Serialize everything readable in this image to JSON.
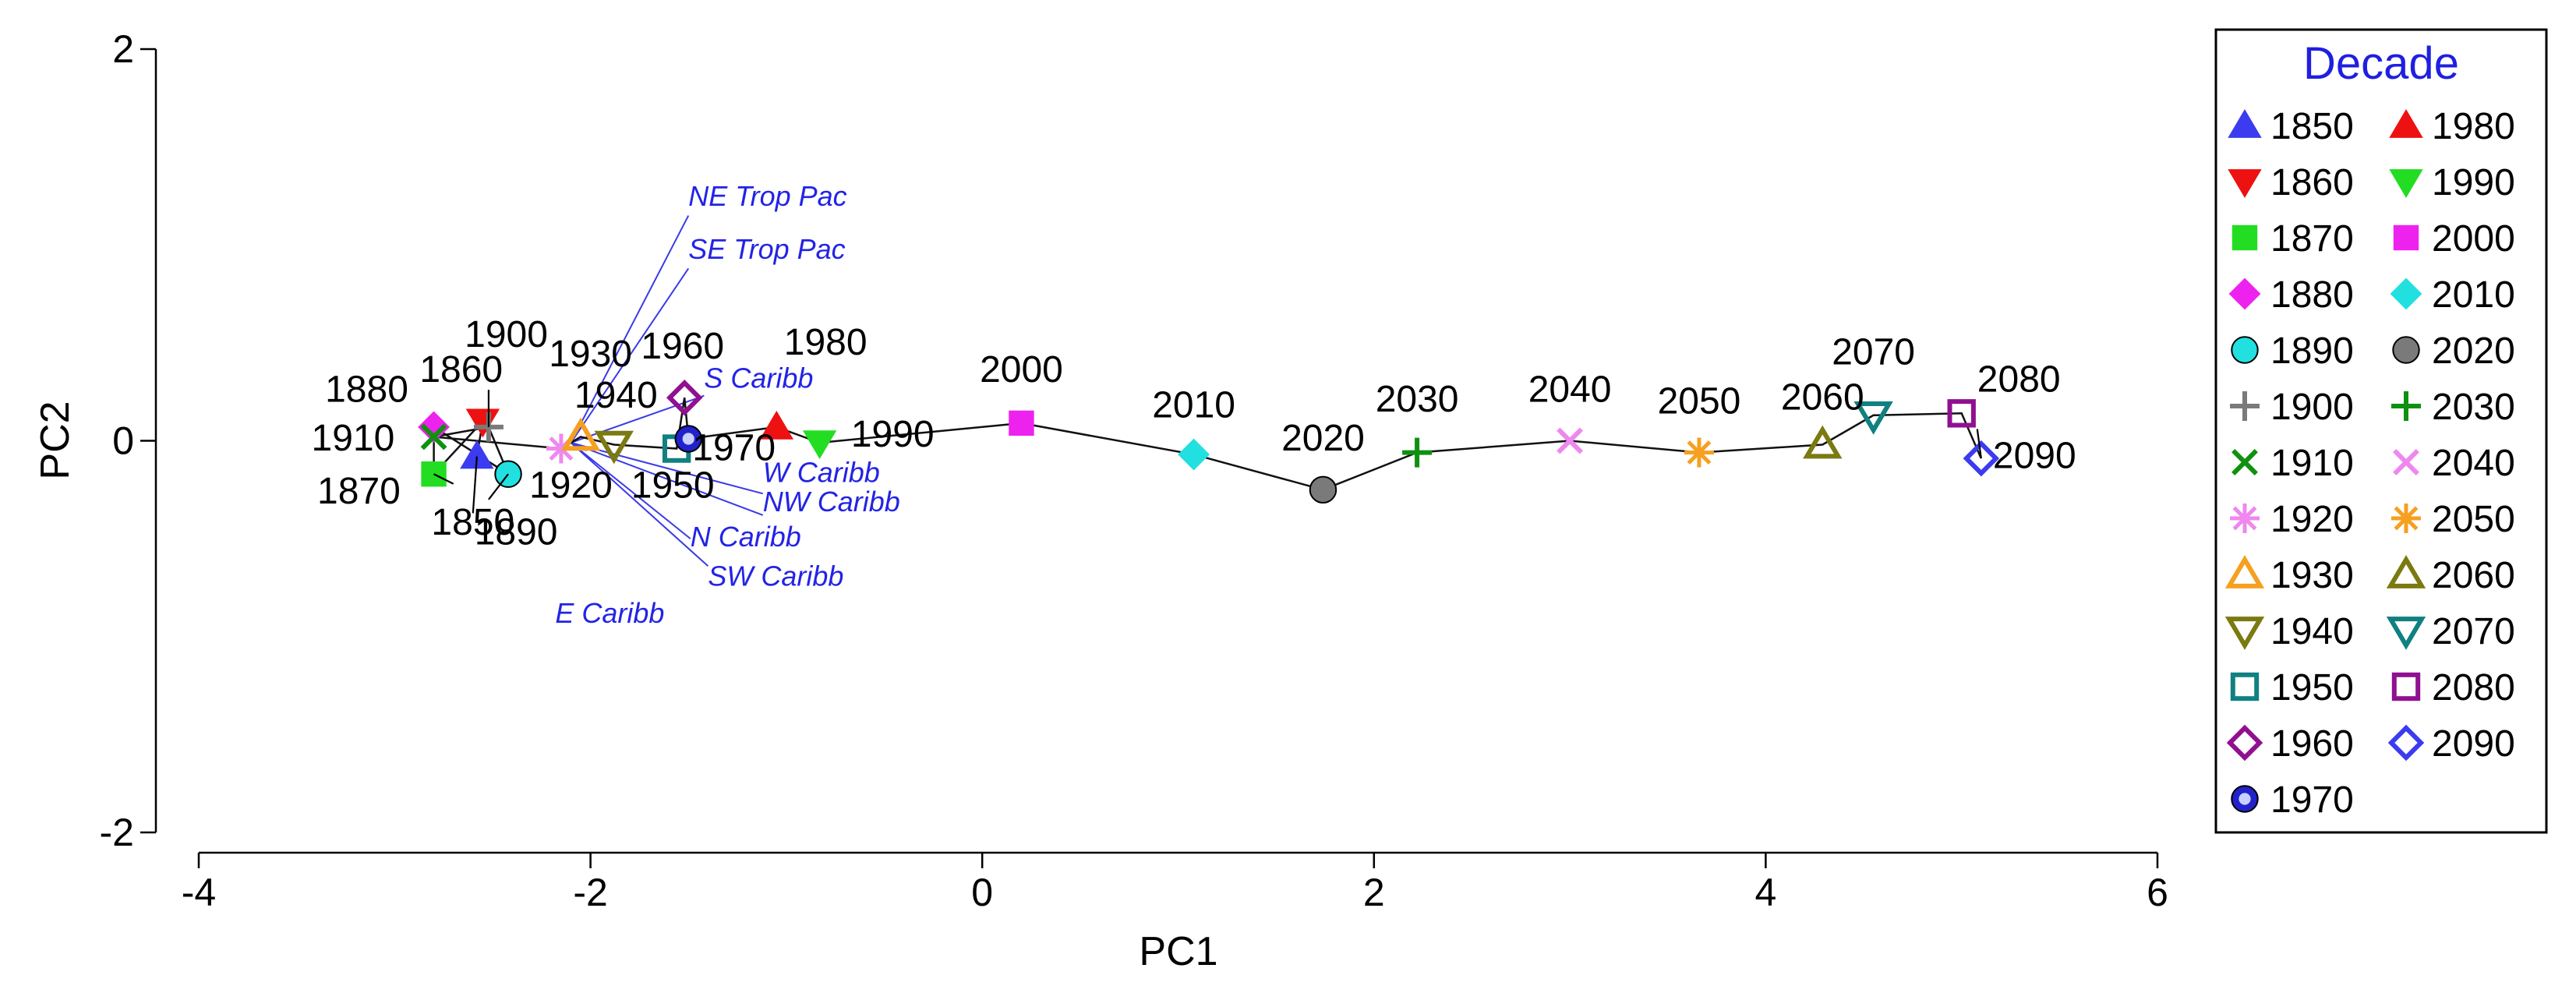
{
  "chart_data": {
    "type": "scatter",
    "title": "",
    "xlabel": "PC1",
    "ylabel": "PC2",
    "xlim": [
      -4,
      6
    ],
    "ylim": [
      -2,
      2
    ],
    "xticks": [
      -4,
      -2,
      0,
      2,
      4,
      6
    ],
    "yticks": [
      -2,
      0,
      2
    ],
    "grid": false,
    "legend": {
      "title": "Decade",
      "placement": "right"
    },
    "points": [
      {
        "decade": "1850",
        "x": -2.58,
        "y": -0.08,
        "marker": "triangle-up",
        "color": "#3b3bf0",
        "filled": true
      },
      {
        "decade": "1860",
        "x": -2.55,
        "y": 0.1,
        "marker": "triangle-down",
        "color": "#ee1111",
        "filled": true
      },
      {
        "decade": "1870",
        "x": -2.8,
        "y": -0.17,
        "marker": "square",
        "color": "#22dd22",
        "filled": true
      },
      {
        "decade": "1880",
        "x": -2.8,
        "y": 0.07,
        "marker": "diamond",
        "color": "#ee22ee",
        "filled": true
      },
      {
        "decade": "1890",
        "x": -2.42,
        "y": -0.17,
        "marker": "circle",
        "color": "#22e0e0",
        "filled": true
      },
      {
        "decade": "1900",
        "x": -2.52,
        "y": 0.07,
        "marker": "plus",
        "color": "#7a7a7a",
        "filled": false
      },
      {
        "decade": "1910",
        "x": -2.8,
        "y": 0.02,
        "marker": "cross",
        "color": "#109010",
        "filled": false
      },
      {
        "decade": "1920",
        "x": -2.15,
        "y": -0.04,
        "marker": "asterisk",
        "color": "#ee88ee",
        "filled": false
      },
      {
        "decade": "1930",
        "x": -2.05,
        "y": 0.02,
        "marker": "triangle-up",
        "color": "#f5a020",
        "filled": false
      },
      {
        "decade": "1940",
        "x": -1.88,
        "y": -0.02,
        "marker": "triangle-down",
        "color": "#7a7a10",
        "filled": false
      },
      {
        "decade": "1950",
        "x": -1.56,
        "y": -0.04,
        "marker": "square",
        "color": "#108080",
        "filled": false
      },
      {
        "decade": "1960",
        "x": -1.52,
        "y": 0.22,
        "marker": "diamond",
        "color": "#901090",
        "filled": false
      },
      {
        "decade": "1970",
        "x": -1.5,
        "y": 0.01,
        "marker": "circle-dot",
        "color": "#2222cc",
        "filled": false
      },
      {
        "decade": "1980",
        "x": -1.05,
        "y": 0.07,
        "marker": "triangle-up",
        "color": "#ee1111",
        "filled": true
      },
      {
        "decade": "1990",
        "x": -0.83,
        "y": -0.01,
        "marker": "triangle-down",
        "color": "#22dd22",
        "filled": true
      },
      {
        "decade": "2000",
        "x": 0.2,
        "y": 0.09,
        "marker": "square",
        "color": "#ee22ee",
        "filled": true
      },
      {
        "decade": "2010",
        "x": 1.08,
        "y": -0.07,
        "marker": "diamond",
        "color": "#22e0e0",
        "filled": true
      },
      {
        "decade": "2020",
        "x": 1.74,
        "y": -0.25,
        "marker": "circle",
        "color": "#7a7a7a",
        "filled": true
      },
      {
        "decade": "2030",
        "x": 2.22,
        "y": -0.06,
        "marker": "plus",
        "color": "#109010",
        "filled": false
      },
      {
        "decade": "2040",
        "x": 3.0,
        "y": 0.0,
        "marker": "cross",
        "color": "#ee88ee",
        "filled": false
      },
      {
        "decade": "2050",
        "x": 3.66,
        "y": -0.06,
        "marker": "asterisk",
        "color": "#f5a020",
        "filled": false
      },
      {
        "decade": "2060",
        "x": 4.29,
        "y": -0.02,
        "marker": "triangle-up",
        "color": "#7a7a10",
        "filled": false
      },
      {
        "decade": "2070",
        "x": 4.55,
        "y": 0.13,
        "marker": "triangle-down",
        "color": "#108080",
        "filled": false
      },
      {
        "decade": "2080",
        "x": 5.0,
        "y": 0.14,
        "marker": "square",
        "color": "#901090",
        "filled": false
      },
      {
        "decade": "2090",
        "x": 5.1,
        "y": -0.09,
        "marker": "diamond",
        "color": "#3b3bf0",
        "filled": false
      }
    ],
    "point_labels": [
      {
        "text": "1850",
        "x": -2.6,
        "y": -0.48,
        "anchor": "middle",
        "lx": -2.6,
        "ly": -0.37
      },
      {
        "text": "1860",
        "x": -2.66,
        "y": 0.3,
        "anchor": "middle"
      },
      {
        "text": "1870",
        "x": -2.97,
        "y": -0.32,
        "anchor": "end",
        "lx": -2.7,
        "ly": -0.22
      },
      {
        "text": "1880",
        "x": -2.93,
        "y": 0.2,
        "anchor": "end"
      },
      {
        "text": "1890",
        "x": -2.38,
        "y": -0.53,
        "anchor": "middle",
        "lx": -2.52,
        "ly": -0.3
      },
      {
        "text": "1900",
        "x": -2.43,
        "y": 0.48,
        "anchor": "middle",
        "lx": -2.52,
        "ly": 0.26
      },
      {
        "text": "1910",
        "x": -3.0,
        "y": -0.05,
        "anchor": "end"
      },
      {
        "text": "1920",
        "x": -2.1,
        "y": -0.29,
        "anchor": "middle"
      },
      {
        "text": "1930",
        "x": -2.0,
        "y": 0.38,
        "anchor": "middle"
      },
      {
        "text": "1940",
        "x": -1.87,
        "y": 0.17,
        "anchor": "middle"
      },
      {
        "text": "1950",
        "x": -1.58,
        "y": -0.29,
        "anchor": "middle"
      },
      {
        "text": "1960",
        "x": -1.53,
        "y": 0.42,
        "anchor": "middle"
      },
      {
        "text": "1970",
        "x": -1.48,
        "y": -0.1,
        "anchor": "start"
      },
      {
        "text": "1980",
        "x": -0.8,
        "y": 0.44,
        "anchor": "middle"
      },
      {
        "text": "1990",
        "x": -0.67,
        "y": -0.03,
        "anchor": "start"
      },
      {
        "text": "2000",
        "x": 0.2,
        "y": 0.3,
        "anchor": "middle"
      },
      {
        "text": "2010",
        "x": 1.08,
        "y": 0.12,
        "anchor": "middle"
      },
      {
        "text": "2020",
        "x": 1.74,
        "y": -0.05,
        "anchor": "middle"
      },
      {
        "text": "2030",
        "x": 2.22,
        "y": 0.15,
        "anchor": "middle"
      },
      {
        "text": "2040",
        "x": 3.0,
        "y": 0.2,
        "anchor": "middle"
      },
      {
        "text": "2050",
        "x": 3.66,
        "y": 0.14,
        "anchor": "middle"
      },
      {
        "text": "2060",
        "x": 4.29,
        "y": 0.16,
        "anchor": "middle"
      },
      {
        "text": "2070",
        "x": 4.55,
        "y": 0.39,
        "anchor": "middle"
      },
      {
        "text": "2080",
        "x": 5.08,
        "y": 0.25,
        "anchor": "start"
      },
      {
        "text": "2090",
        "x": 5.16,
        "y": -0.14,
        "anchor": "start",
        "lx": 5.08,
        "ly": 0.06
      }
    ],
    "vectors": [
      {
        "name": "NE Trop Pac",
        "x": -1.5,
        "y": 1.2,
        "lx": -1.5,
        "ly": 1.15
      },
      {
        "name": "SE Trop Pac",
        "x": -1.5,
        "y": 0.93,
        "lx": -1.5,
        "ly": 0.88
      },
      {
        "name": "S Caribb",
        "x": -1.42,
        "y": 0.27,
        "lx": -1.42,
        "ly": 0.23
      },
      {
        "name": "W Caribb",
        "x": -1.12,
        "y": -0.21,
        "lx": -1.12,
        "ly": -0.27
      },
      {
        "name": "NW Caribb",
        "x": -1.12,
        "y": -0.36,
        "lx": -1.12,
        "ly": -0.38
      },
      {
        "name": "N Caribb",
        "x": -1.49,
        "y": -0.54,
        "lx": -1.49,
        "ly": -0.5
      },
      {
        "name": "SW Caribb",
        "x": -1.4,
        "y": -0.74,
        "lx": -1.4,
        "ly": -0.64
      },
      {
        "name": "E Caribb",
        "x": -2.18,
        "y": -0.93,
        "lx": -2.02,
        "ly": -0.05
      }
    ],
    "vector_origin": {
      "x": -2.1,
      "y": -0.01
    }
  }
}
